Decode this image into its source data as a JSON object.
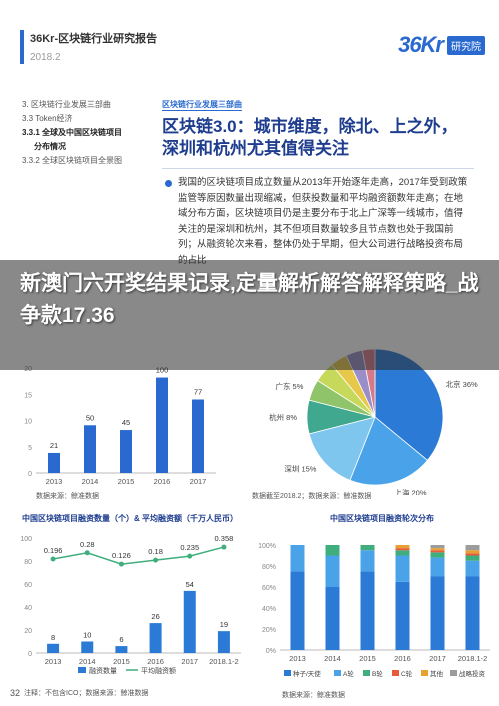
{
  "header": {
    "title": "36Kr-区块链行业研究报告",
    "date": "2018.2",
    "logo_brand": "36Kr",
    "logo_tag": "研究院"
  },
  "toc": [
    {
      "label": "3. 区块链行业发展三部曲",
      "active": false,
      "indent": false
    },
    {
      "label": "3.3 Token经济",
      "active": false,
      "indent": false
    },
    {
      "label": "3.3.1 全球及中国区块链项目",
      "active": true,
      "indent": false
    },
    {
      "label": "分布情况",
      "active": true,
      "indent": true
    },
    {
      "label": "3.3.2 全球区块链项目全景图",
      "active": false,
      "indent": false
    }
  ],
  "section": {
    "tag": "区块链行业发展三部曲",
    "title": "区块链3.0：城市维度，除北、上之外，深圳和杭州尤其值得关注",
    "body": "我国的区块链项目成立数量从2013年开始逐年走高，2017年受到政策监管等原因数量出现缩减，但获投数量和平均融资额数年走高；在地域分布方面，区块链项目仍是主要分布于北上广深等一线城市，值得关注的是深圳和杭州，其不但项目数量较多且节点数也处于我国前列；从融资轮次来看，整体仍处于早期，但大公司进行战略投资布局的占比"
  },
  "overlay": {
    "text": "新澳门六开奖结果记录,定量解析解答解释策略_战争款17.36"
  },
  "chart1": {
    "source": "数据来源：鲸准数据",
    "categories": [
      "2013",
      "2014",
      "2015",
      "2016",
      "2017"
    ],
    "values": [
      21,
      50,
      45,
      100,
      77
    ],
    "color": "#2a6ad0"
  },
  "chart2": {
    "source": "数据截至2018.2；数据来源：鲸准数据",
    "slices": [
      {
        "name": "北京",
        "label": "北京 36%",
        "value": 36,
        "color": "#2a7ad6"
      },
      {
        "name": "上海",
        "label": "上海 20%",
        "value": 20,
        "color": "#4aa3e8"
      },
      {
        "name": "深圳",
        "label": "深圳 15%",
        "value": 15,
        "color": "#7fc6ef"
      },
      {
        "name": "杭州",
        "label": "杭州 8%",
        "value": 8,
        "color": "#3fa88f"
      },
      {
        "name": "广东",
        "label": "广东 5%",
        "value": 5,
        "color": "#8fc46a"
      },
      {
        "name": "other1",
        "label": "",
        "value": 5,
        "color": "#c6d95a"
      },
      {
        "name": "other2",
        "label": "",
        "value": 4,
        "color": "#e8c84a"
      },
      {
        "name": "other3",
        "label": "",
        "value": 4,
        "color": "#9a8ec8"
      },
      {
        "name": "other4",
        "label": "",
        "value": 3,
        "color": "#d67a8a"
      }
    ]
  },
  "chart_data": [
    {
      "type": "bar",
      "categories": [
        "2013",
        "2014",
        "2015",
        "2016",
        "2017"
      ],
      "values": [
        21,
        50,
        45,
        100,
        77
      ]
    },
    {
      "type": "pie",
      "categories": [
        "北京",
        "上海",
        "深圳",
        "杭州",
        "广东"
      ],
      "values": [
        36,
        20,
        15,
        8,
        5
      ]
    },
    {
      "type": "bar",
      "title": "中国区块链项目融资数量（个）& 平均融资额（千万人民币）",
      "categories": [
        "2013",
        "2014",
        "2015",
        "2016",
        "2017",
        "2018.1-2"
      ],
      "series": [
        {
          "name": "融资数量",
          "values": [
            8,
            10,
            6,
            26,
            54,
            19
          ]
        },
        {
          "name": "平均融资额",
          "values": [
            0.196,
            0.28,
            0.126,
            0.18,
            0.235,
            0.358
          ]
        }
      ]
    },
    {
      "type": "bar",
      "title": "中国区块链项目融资轮次分布",
      "categories": [
        "2013",
        "2014",
        "2015",
        "2016",
        "2017",
        "2018.1-2"
      ],
      "ylim": [
        0,
        100
      ],
      "series": [
        {
          "name": "种子/天使",
          "values": [
            75,
            60,
            75,
            65,
            70,
            70
          ]
        },
        {
          "name": "A轮",
          "values": [
            25,
            30,
            20,
            25,
            18,
            15
          ]
        },
        {
          "name": "B轮",
          "values": [
            0,
            10,
            5,
            5,
            5,
            5
          ]
        },
        {
          "name": "C轮",
          "values": [
            0,
            0,
            0,
            2,
            2,
            2
          ]
        },
        {
          "name": "其他",
          "values": [
            0,
            0,
            0,
            3,
            2,
            3
          ]
        },
        {
          "name": "战略投资",
          "values": [
            0,
            0,
            0,
            0,
            3,
            5
          ]
        }
      ]
    }
  ],
  "chart3": {
    "title": "中国区块链项目融资数量（个）& 平均融资额（千万人民币）",
    "categories": [
      "2013",
      "2014",
      "2015",
      "2016",
      "2017",
      "2018.1-2"
    ],
    "bar_values": [
      8,
      10,
      6,
      26,
      54,
      19
    ],
    "line_values": [
      0.196,
      0.28,
      0.126,
      0.18,
      0.235,
      0.358
    ],
    "line_labels": [
      "0.196",
      "0.28",
      "0.126",
      "0.18",
      "0.235",
      "0.358"
    ],
    "y_ticks": [
      "0",
      "20",
      "40",
      "60",
      "80",
      "100"
    ],
    "bar_color": "#2a7ad6",
    "line_color": "#3fae7c",
    "legend_bar": "融资数量",
    "legend_line": "平均融资额",
    "note": "注释：不包含ICO；数据来源：鲸准数据"
  },
  "chart4": {
    "title": "中国区块链项目融资轮次分布",
    "categories": [
      "2013",
      "2014",
      "2015",
      "2016",
      "2017",
      "2018.1-2"
    ],
    "y_ticks": [
      "0%",
      "20%",
      "40%",
      "60%",
      "80%",
      "100%"
    ],
    "series": [
      {
        "name": "种子/天使",
        "color": "#2a7ad6",
        "values": [
          75,
          60,
          75,
          65,
          70,
          70
        ]
      },
      {
        "name": "A轮",
        "color": "#4aa3e8",
        "values": [
          25,
          30,
          20,
          25,
          18,
          15
        ]
      },
      {
        "name": "B轮",
        "color": "#3fae7c",
        "values": [
          0,
          10,
          5,
          5,
          5,
          5
        ]
      },
      {
        "name": "C轮",
        "color": "#e85a3a",
        "values": [
          0,
          0,
          0,
          2,
          2,
          2
        ]
      },
      {
        "name": "其他",
        "color": "#e8a030",
        "values": [
          0,
          0,
          0,
          3,
          2,
          3
        ]
      },
      {
        "name": "战略投资",
        "color": "#9c9c9c",
        "values": [
          0,
          0,
          0,
          0,
          3,
          5
        ]
      }
    ],
    "source": "数据来源：鲸准数据"
  },
  "page_number": "32"
}
